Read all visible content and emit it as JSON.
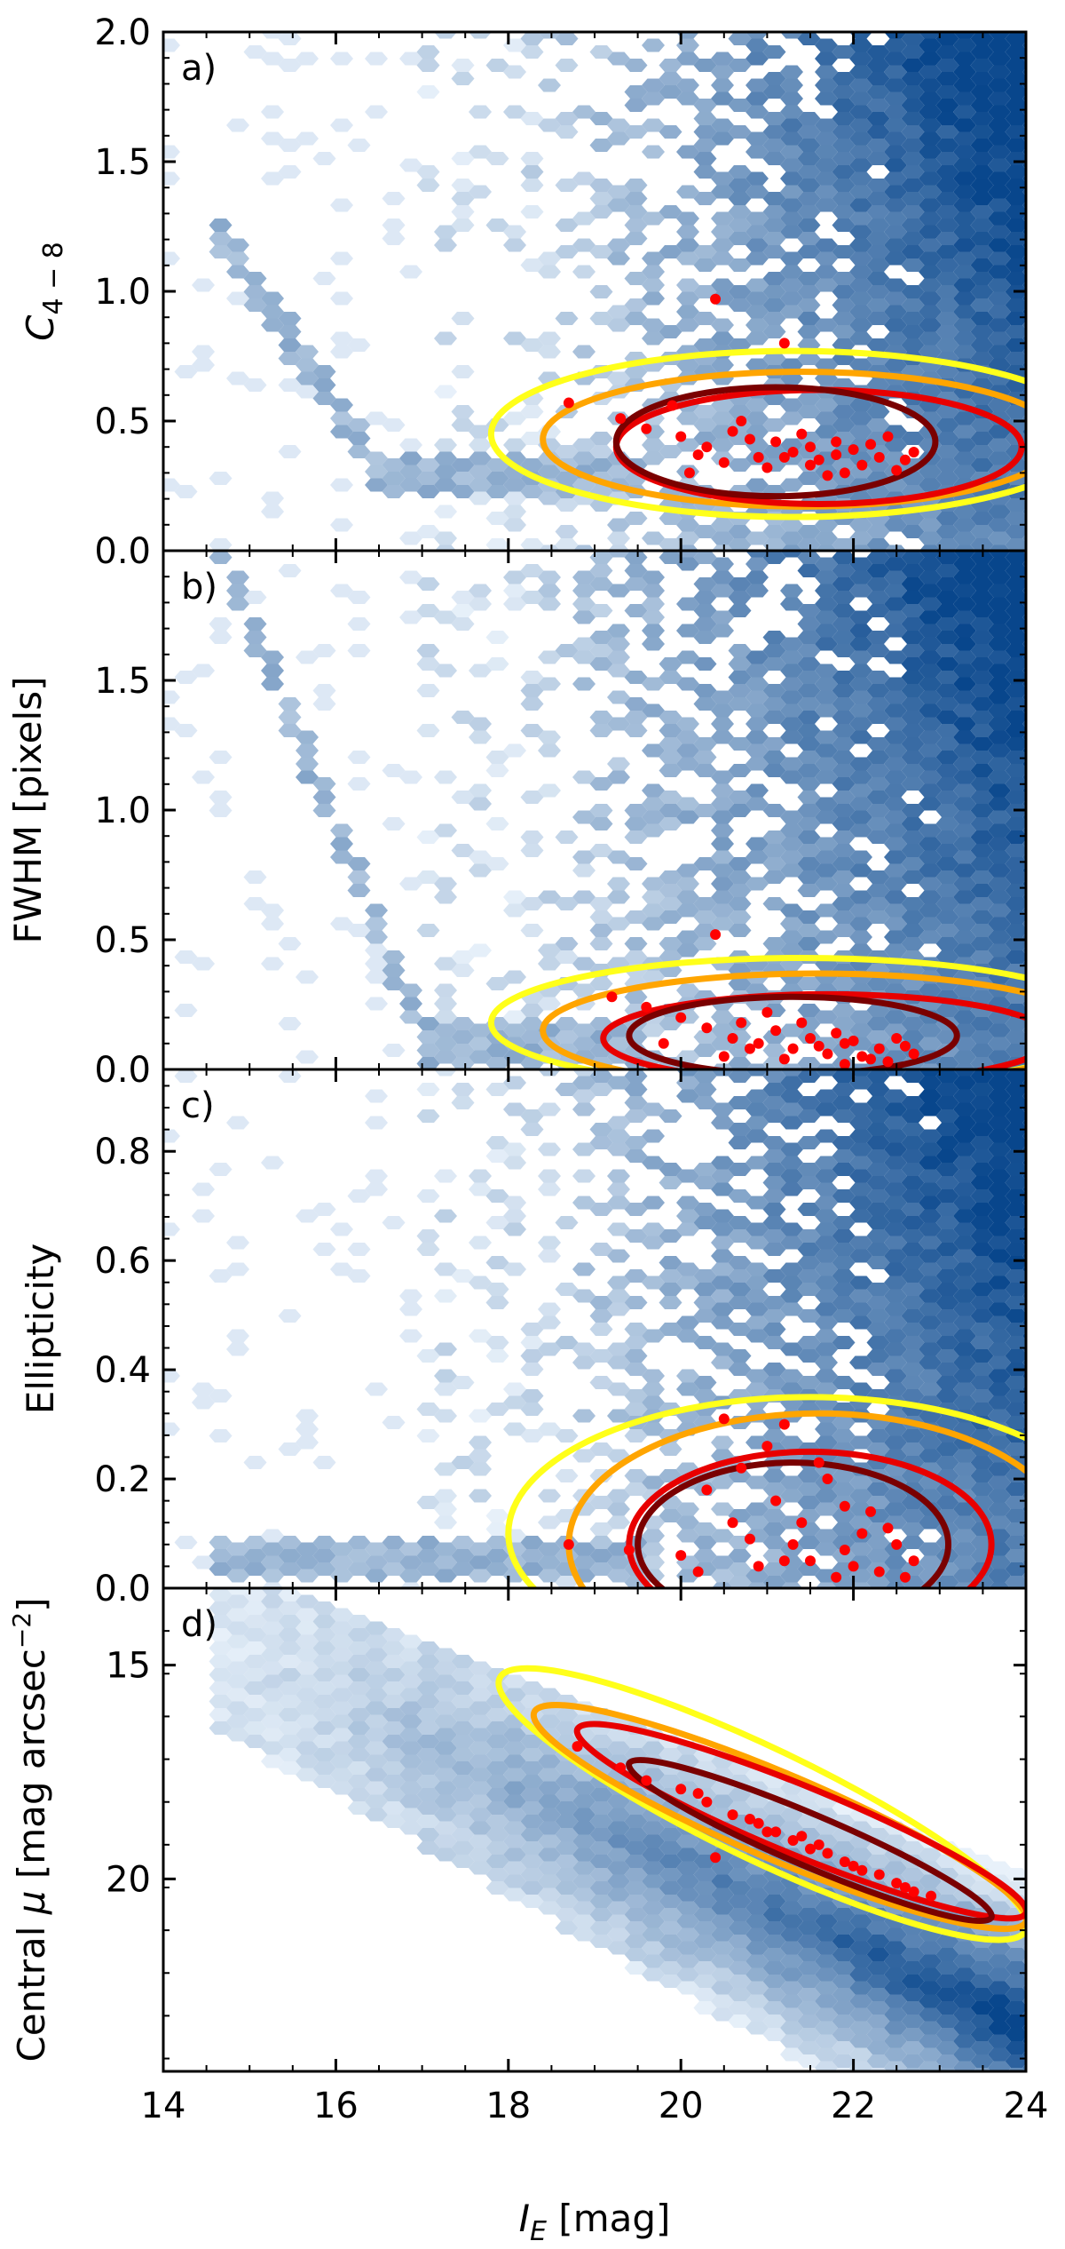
{
  "figure": {
    "xlabel_main": "I",
    "xlabel_sub": "E",
    "xlabel_unit": " [mag]"
  },
  "colors": {
    "hex_low": "#e8f1fa",
    "hex_high": "#08468c",
    "contour_levels": [
      "#ffff1a",
      "#ffa500",
      "#e80000",
      "#7a0000"
    ],
    "points": "#ff0000"
  },
  "chart_data": [
    {
      "type": "scatter",
      "panel": "a)",
      "ylabel_main": "C",
      "ylabel_sub": "4 − 8",
      "xlim": [
        14,
        24
      ],
      "ylim": [
        0.0,
        2.0
      ],
      "yticks": [
        0.0,
        0.5,
        1.0,
        1.5,
        2.0
      ],
      "ytick_labels": [
        "0.0",
        "0.5",
        "1.0",
        "1.5",
        "2.0"
      ],
      "y_inverted": false,
      "density_background": "hexbin, blue",
      "contours": [
        {
          "color": "#ffff1a",
          "center": [
            21.3,
            0.45
          ],
          "half_width": [
            3.5,
            0.32
          ]
        },
        {
          "color": "#ffa500",
          "center": [
            21.4,
            0.43
          ],
          "half_width": [
            3.0,
            0.26
          ]
        },
        {
          "color": "#e80000",
          "center": [
            21.6,
            0.4
          ],
          "half_width": [
            2.35,
            0.22
          ]
        },
        {
          "color": "#7a0000",
          "center": [
            21.1,
            0.42
          ],
          "half_width": [
            1.85,
            0.21
          ]
        }
      ],
      "points": [
        [
          20.4,
          0.97
        ],
        [
          21.2,
          0.8
        ],
        [
          18.7,
          0.57
        ],
        [
          19.3,
          0.51
        ],
        [
          19.6,
          0.47
        ],
        [
          20.0,
          0.44
        ],
        [
          20.3,
          0.4
        ],
        [
          20.6,
          0.46
        ],
        [
          20.9,
          0.36
        ],
        [
          21.1,
          0.42
        ],
        [
          21.3,
          0.38
        ],
        [
          21.5,
          0.4
        ],
        [
          21.6,
          0.35
        ],
        [
          21.8,
          0.37
        ],
        [
          22.0,
          0.39
        ],
        [
          22.1,
          0.33
        ],
        [
          22.3,
          0.36
        ],
        [
          22.5,
          0.31
        ],
        [
          22.7,
          0.38
        ],
        [
          20.1,
          0.3
        ],
        [
          20.5,
          0.34
        ],
        [
          20.8,
          0.43
        ],
        [
          21.0,
          0.32
        ],
        [
          21.4,
          0.45
        ],
        [
          21.7,
          0.29
        ],
        [
          22.2,
          0.41
        ],
        [
          22.4,
          0.44
        ],
        [
          21.9,
          0.3
        ],
        [
          20.7,
          0.5
        ],
        [
          19.9,
          0.56
        ],
        [
          21.2,
          0.36
        ],
        [
          21.5,
          0.33
        ],
        [
          22.6,
          0.35
        ],
        [
          20.2,
          0.37
        ],
        [
          21.8,
          0.42
        ]
      ]
    },
    {
      "type": "scatter",
      "panel": "b)",
      "ylabel_main": "FWHM [pixels]",
      "xlim": [
        14,
        24
      ],
      "ylim": [
        0.0,
        2.0
      ],
      "yticks": [
        0.0,
        0.5,
        1.0,
        1.5
      ],
      "ytick_labels": [
        "0.0",
        "0.5",
        "1.0",
        "1.5"
      ],
      "y_inverted": false,
      "density_background": "hexbin, blue",
      "contours": [
        {
          "color": "#ffff1a",
          "center": [
            21.4,
            0.18
          ],
          "half_width": [
            3.6,
            0.25
          ]
        },
        {
          "color": "#ffa500",
          "center": [
            21.6,
            0.15
          ],
          "half_width": [
            3.2,
            0.22
          ]
        },
        {
          "color": "#e80000",
          "center": [
            21.7,
            0.12
          ],
          "half_width": [
            2.6,
            0.17
          ]
        },
        {
          "color": "#7a0000",
          "center": [
            21.3,
            0.13
          ],
          "half_width": [
            1.9,
            0.15
          ]
        }
      ],
      "points": [
        [
          20.4,
          0.52
        ],
        [
          19.2,
          0.28
        ],
        [
          19.6,
          0.24
        ],
        [
          20.0,
          0.2
        ],
        [
          20.3,
          0.16
        ],
        [
          20.6,
          0.12
        ],
        [
          20.9,
          0.1
        ],
        [
          21.1,
          0.15
        ],
        [
          21.3,
          0.08
        ],
        [
          21.5,
          0.12
        ],
        [
          21.7,
          0.06
        ],
        [
          21.9,
          0.1
        ],
        [
          22.1,
          0.05
        ],
        [
          22.3,
          0.08
        ],
        [
          22.5,
          0.12
        ],
        [
          22.7,
          0.06
        ],
        [
          21.0,
          0.22
        ],
        [
          21.4,
          0.18
        ],
        [
          21.8,
          0.14
        ],
        [
          22.2,
          0.04
        ],
        [
          20.5,
          0.05
        ],
        [
          20.8,
          0.08
        ],
        [
          21.6,
          0.09
        ],
        [
          22.0,
          0.11
        ],
        [
          22.4,
          0.03
        ],
        [
          21.2,
          0.04
        ],
        [
          20.7,
          0.18
        ],
        [
          19.8,
          0.1
        ],
        [
          22.6,
          0.09
        ],
        [
          21.9,
          0.02
        ]
      ]
    },
    {
      "type": "scatter",
      "panel": "c)",
      "ylabel_main": "Ellipticity",
      "xlim": [
        14,
        24
      ],
      "ylim": [
        0.0,
        0.95
      ],
      "yticks": [
        0.0,
        0.2,
        0.4,
        0.6,
        0.8
      ],
      "ytick_labels": [
        "0.0",
        "0.2",
        "0.4",
        "0.6",
        "0.8"
      ],
      "y_inverted": false,
      "density_background": "hexbin, blue",
      "contours": [
        {
          "color": "#ffff1a",
          "center": [
            21.5,
            0.1
          ],
          "half_width": [
            3.5,
            0.25
          ]
        },
        {
          "color": "#ffa500",
          "center": [
            21.6,
            0.08
          ],
          "half_width": [
            2.9,
            0.24
          ]
        },
        {
          "color": "#e80000",
          "center": [
            21.5,
            0.08
          ],
          "half_width": [
            2.1,
            0.17
          ]
        },
        {
          "color": "#7a0000",
          "center": [
            21.3,
            0.08
          ],
          "half_width": [
            1.8,
            0.15
          ]
        }
      ],
      "points": [
        [
          20.5,
          0.31
        ],
        [
          21.2,
          0.3
        ],
        [
          18.7,
          0.08
        ],
        [
          19.4,
          0.07
        ],
        [
          20.0,
          0.06
        ],
        [
          20.3,
          0.18
        ],
        [
          20.6,
          0.12
        ],
        [
          20.9,
          0.04
        ],
        [
          21.1,
          0.16
        ],
        [
          21.3,
          0.08
        ],
        [
          21.5,
          0.05
        ],
        [
          21.7,
          0.2
        ],
        [
          21.9,
          0.07
        ],
        [
          22.1,
          0.1
        ],
        [
          22.3,
          0.03
        ],
        [
          22.5,
          0.08
        ],
        [
          22.7,
          0.05
        ],
        [
          21.0,
          0.26
        ],
        [
          21.4,
          0.12
        ],
        [
          21.8,
          0.02
        ],
        [
          22.2,
          0.14
        ],
        [
          20.8,
          0.09
        ],
        [
          20.2,
          0.03
        ],
        [
          21.6,
          0.23
        ],
        [
          22.0,
          0.04
        ],
        [
          22.4,
          0.11
        ],
        [
          21.2,
          0.05
        ],
        [
          20.7,
          0.22
        ],
        [
          22.6,
          0.02
        ],
        [
          21.9,
          0.15
        ]
      ]
    },
    {
      "type": "scatter",
      "panel": "d)",
      "ylabel_main": "Central ",
      "ylabel_greek": "μ",
      "ylabel_unit": " [mag arcsec",
      "ylabel_exp": "−2",
      "ylabel_close": "]",
      "xlim": [
        14,
        24
      ],
      "ylim": [
        13.2,
        24.5
      ],
      "yticks": [
        15,
        20
      ],
      "ytick_labels": [
        "15",
        "20"
      ],
      "y_inverted": true,
      "density_background": "hexbin, blue",
      "contours": [
        {
          "color": "#ffff1a",
          "line": [
            [
              17.9,
              15.3
            ],
            [
              24.0,
              21.2
            ]
          ],
          "width": 1.3
        },
        {
          "color": "#ffa500",
          "line": [
            [
              18.3,
              16.1
            ],
            [
              24.0,
              21.0
            ]
          ],
          "width": 1.0
        },
        {
          "color": "#e80000",
          "line": [
            [
              18.8,
              16.5
            ],
            [
              24.0,
              20.8
            ]
          ],
          "width": 0.8
        },
        {
          "color": "#7a0000",
          "line": [
            [
              19.4,
              17.3
            ],
            [
              23.6,
              20.9
            ]
          ],
          "width": 0.6
        }
      ],
      "points": [
        [
          20.4,
          19.5
        ],
        [
          19.3,
          17.4
        ],
        [
          19.6,
          17.7
        ],
        [
          20.0,
          17.9
        ],
        [
          20.3,
          18.2
        ],
        [
          20.6,
          18.5
        ],
        [
          20.9,
          18.7
        ],
        [
          21.1,
          18.9
        ],
        [
          21.3,
          19.1
        ],
        [
          21.5,
          19.3
        ],
        [
          21.7,
          19.4
        ],
        [
          21.9,
          19.6
        ],
        [
          22.1,
          19.8
        ],
        [
          22.3,
          19.9
        ],
        [
          22.5,
          20.1
        ],
        [
          22.7,
          20.3
        ],
        [
          20.2,
          18.0
        ],
        [
          20.8,
          18.6
        ],
        [
          21.4,
          19.0
        ],
        [
          22.0,
          19.7
        ],
        [
          22.6,
          20.2
        ],
        [
          21.0,
          18.9
        ],
        [
          21.6,
          19.2
        ],
        [
          18.8,
          16.9
        ],
        [
          22.9,
          20.4
        ]
      ]
    }
  ]
}
